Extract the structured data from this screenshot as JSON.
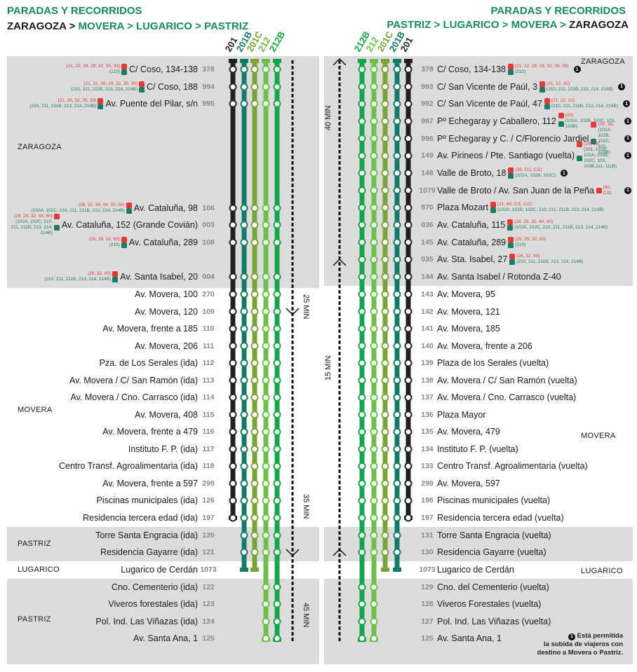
{
  "left": {
    "title": "PARADAS Y RECORRIDOS",
    "route": [
      {
        "t": "ZARAGOZA",
        "c": "k"
      },
      {
        "t": " > ",
        "c": "k"
      },
      {
        "t": "MOVERA",
        "c": "g"
      },
      {
        "t": " > ",
        "c": "g"
      },
      {
        "t": "LUGARICO",
        "c": "g"
      },
      {
        "t": " > ",
        "c": "g"
      },
      {
        "t": "PASTRIZ",
        "c": "g"
      }
    ],
    "zones": [
      "ZARAGOZA",
      "MOVERA",
      "PASTRIZ",
      "LUGARICO",
      "PASTRIZ"
    ],
    "times": [
      "25 MIN",
      "35 MIN",
      "45 MIN"
    ],
    "stops": [
      {
        "code": "378",
        "name": "C/ Coso, 134-138",
        "red": "(21, 22, 28, 29, 32, 35, 39)",
        "green": "(210)"
      },
      {
        "code": "994",
        "name": "C/ Coso, 188",
        "red": "(21, 22, 28, 29, 32, 35, 39)",
        "green": "(210, 211, 211B, 213, 214, 214B)"
      },
      {
        "code": "995",
        "name": "Av. Puente del Pilar, s/n",
        "red": "(21, 28, 32, 35, 39)",
        "green": "(210, 211, 211B, 213, 214, 214B)"
      },
      {
        "code": "106",
        "name": "Av. Cataluña, 98",
        "red": "(28, 32, 39, 44, 50, 60)",
        "green": "(102A, 102C, 210, 211, 211B, 213, 214, 214B)"
      },
      {
        "code": "003",
        "name": "Av. Cataluña, 152 (Grande Covián)",
        "red": "(28, 29, 32, 44, 60)",
        "green": "(102A, 102C, 210, 211, 211B, 213, 214, 214B)"
      },
      {
        "code": "108",
        "name": "Av. Cataluña, 289",
        "red": "(28, 29, 32, 60)",
        "green": "(210)"
      },
      {
        "code": "004",
        "name": "Av. Santa Isabel, 20",
        "red": "(28, 32, 60)",
        "green": "(210, 211, 211B, 213, 214, 214B)"
      },
      {
        "code": "270",
        "name": "Av. Movera, 100"
      },
      {
        "code": "109",
        "name": "Av. Movera, 120"
      },
      {
        "code": "110",
        "name": "Av. Movera, frente a 185"
      },
      {
        "code": "111",
        "name": "Av. Movera, 206"
      },
      {
        "code": "112",
        "name": "Pza. de Los Serales (ida)"
      },
      {
        "code": "113",
        "name": "Av. Movera / C/ San Ramón (ida)"
      },
      {
        "code": "114",
        "name": "Av. Movera / Cno. Carrasco (ida)"
      },
      {
        "code": "115",
        "name": "Av. Movera, 408"
      },
      {
        "code": "116",
        "name": "Av. Movera, frente a 479"
      },
      {
        "code": "117",
        "name": "Instituto F. P.  (ida)"
      },
      {
        "code": "118",
        "name": "Centro Transf. Agroalimentaria (ida)"
      },
      {
        "code": "298",
        "name": "Av. Movera, frente a 597"
      },
      {
        "code": "126",
        "name": "Piscinas municipales (ida)"
      },
      {
        "code": "197",
        "name": "Residencia tercera edad (ida)"
      },
      {
        "code": "120",
        "name": "Torre Santa Engracia (ida)",
        "served": [
          "201B",
          "201C",
          "212",
          "212B"
        ]
      },
      {
        "code": "121",
        "name": "Residencia Gayarre (ida)",
        "served": [
          "201B",
          "201C",
          "212",
          "212B"
        ]
      },
      {
        "code": "1073",
        "name": "Lugarico de Cerdán",
        "served": []
      },
      {
        "code": "122",
        "name": "Cno. Cementerio (ida)",
        "served": [
          "212",
          "212B"
        ]
      },
      {
        "code": "123",
        "name": "Viveros forestales (ida)",
        "served": [
          "212",
          "212B"
        ]
      },
      {
        "code": "124",
        "name": "Pol. Ind. Las Viñazas (ida)",
        "served": [
          "212",
          "212B"
        ]
      },
      {
        "code": "125",
        "name": "Av. Santa Ana, 1",
        "served": [
          "212",
          "212B"
        ]
      }
    ]
  },
  "right": {
    "title": "PARADAS Y RECORRIDOS",
    "route": [
      {
        "t": "PASTRIZ",
        "c": "g"
      },
      {
        "t": " > ",
        "c": "g"
      },
      {
        "t": "LUGARICO",
        "c": "g"
      },
      {
        "t": " > ",
        "c": "g"
      },
      {
        "t": "MOVERA",
        "c": "g"
      },
      {
        "t": " > ",
        "c": "g"
      },
      {
        "t": "ZARAGOZA",
        "c": "k"
      }
    ],
    "zones": [
      "ZARAGOZA",
      "MOVERA",
      "LUGARICO"
    ],
    "times": [
      "40 MIN",
      "15 MIN"
    ],
    "stops": [
      {
        "code": "378",
        "name": "C/ Coso, 134-138",
        "red": "(21, 22, 28, 29, 32, 35, 39)",
        "green": "(210)",
        "note": true
      },
      {
        "code": "993",
        "name": "C/ San Vicente de Paúl, 3",
        "red": "(21, 22, 32)",
        "green": "(210, 211, 211B, 213, 214, 214B)",
        "note": true
      },
      {
        "code": "992",
        "name": "C/ San Vicente de Paúl, 47",
        "red": "(21, 22, 32)",
        "green": "(210, 211, 211B, 213, 214, 214B)",
        "note": true
      },
      {
        "code": "997",
        "name": "Pº Echegaray y Caballero, 112",
        "red": "(29)",
        "green": "(102A, 102B, 102C, 103, 103B)",
        "note": true
      },
      {
        "code": "996",
        "name": "Pº Echegaray y C. / C/Florencio Jardiel",
        "red": "(29, 36)",
        "green": "(102A, 102B, 102C, 103, 103B)",
        "note": true
      },
      {
        "code": "149",
        "name": "Av. Pirineos / Pte. Santiago (vuelta)",
        "red": "(29, 60)",
        "green": "(101, 101B, 102A, 102B, 102C, 103, 103B,111, 111B)",
        "note": true
      },
      {
        "code": "148",
        "name": "Valle de Broto, 18",
        "red": "(36, Ci1, Ci2)",
        "green": "(102A, 102B, 102C)",
        "note": true
      },
      {
        "code": "1079",
        "name": "Valle de Broto / Av. San Juan de la Peña",
        "red": "(60, Ci2)",
        "note": true
      },
      {
        "code": "870",
        "name": "Plaza Mozart",
        "red": "(21, 60, Ci1, Ci2)",
        "green": "(102A, 102B, 102C, 210, 211, 211B, 213, 214, 214B)"
      },
      {
        "code": "036",
        "name": "Av. Cataluña, 115",
        "red": "(28, 29, 32, 44, 60)",
        "green": "(102A, 102C, 210, 211, 211B, 213, 214, 214B)"
      },
      {
        "code": "145",
        "name": "Av. Cataluña, 289",
        "red": "(28, 29, 32, 60)",
        "green": "(210)"
      },
      {
        "code": "035",
        "name": "Av. Sta. Isabel, 27",
        "red": "(28, 32, 60)",
        "green": "(210, 211, 211B, 213, 214, 214B)"
      },
      {
        "code": "144",
        "name": "Av. Santa Isabel / Rotonda Z-40"
      },
      {
        "code": "143",
        "name": "Av. Movera, 95"
      },
      {
        "code": "142",
        "name": "Av. Movera, 121"
      },
      {
        "code": "141",
        "name": "Av. Movera, 185"
      },
      {
        "code": "140",
        "name": "Av. Movera, frente a 206"
      },
      {
        "code": "139",
        "name": "Plaza de los Serales (vuelta)"
      },
      {
        "code": "138",
        "name": "Av. Movera / C/ San Ramón (vuelta)"
      },
      {
        "code": "137",
        "name": "Av. Movera / Cno. Carrasco (vuelta)"
      },
      {
        "code": "136",
        "name": "Plaza Mayor"
      },
      {
        "code": "135",
        "name": "Av. Movera, 479"
      },
      {
        "code": "134",
        "name": "Instituto F. P. (vuelta)"
      },
      {
        "code": "133",
        "name": "Centro Transf. Agroalimentaria (vuelta)"
      },
      {
        "code": "299",
        "name": "Av. Movera, 597"
      },
      {
        "code": "198",
        "name": "Piscinas municipales (vuelta)"
      },
      {
        "code": "197",
        "name": "Residencia tercera edad (vuelta)"
      },
      {
        "code": "131",
        "name": "Torre Santa Engracia (vuelta)",
        "served": [
          "201B",
          "201C",
          "212",
          "212B"
        ]
      },
      {
        "code": "130",
        "name": "Residencia Gayarre (vuelta)",
        "served": [
          "201B",
          "201C",
          "212",
          "212B"
        ]
      },
      {
        "code": "1073",
        "name": "Lugarico de Cerdán",
        "served": []
      },
      {
        "code": "129",
        "name": "Cno. del Cementerio (vuelta)",
        "served": [
          "212",
          "212B"
        ]
      },
      {
        "code": "128",
        "name": "Viveros Forestales (vuelta)",
        "served": [
          "212",
          "212B"
        ]
      },
      {
        "code": "127",
        "name": "Pol. Ind. Las Viñazas (vuelta)",
        "served": [
          "212",
          "212B"
        ]
      },
      {
        "code": "125",
        "name": "Av. Santa Ana, 1",
        "served": [
          "212",
          "212B"
        ]
      }
    ]
  },
  "lines": [
    {
      "id": "201",
      "color": "#231f20"
    },
    {
      "id": "201B",
      "color": "#137a66"
    },
    {
      "id": "201C",
      "color": "#7aa33a"
    },
    {
      "id": "212",
      "color": "#6cc04a"
    },
    {
      "id": "212B",
      "color": "#13a54b"
    }
  ],
  "legend": {
    "mark": "1",
    "text": [
      "Está permitida",
      "la subida de viajeros con",
      "destino a Movera o Pastriz."
    ]
  },
  "colors": {
    "urban_bus": "#e53935",
    "interurban_bus": "#1e7a63",
    "title_green": "#1a8a5a"
  }
}
